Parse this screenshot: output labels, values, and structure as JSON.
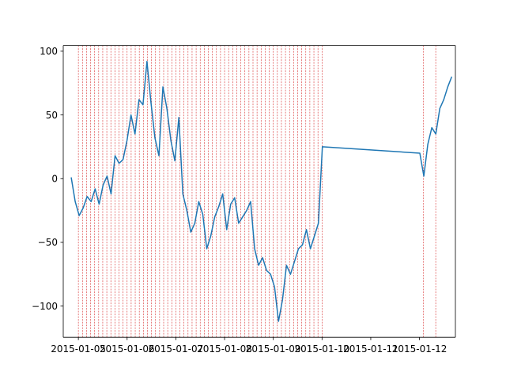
{
  "chart_data": {
    "type": "line",
    "title": "",
    "xlabel": "",
    "ylabel": "",
    "grid": false,
    "legend": false,
    "xlim": [
      "2015-01-04T16:33",
      "2015-01-12T17:41"
    ],
    "ylim": [
      -124.5,
      104.5
    ],
    "xticks": [
      "2015-01-05",
      "2015-01-06",
      "2015-01-07",
      "2015-01-08",
      "2015-01-09",
      "2015-01-10",
      "2015-01-11",
      "2015-01-12"
    ],
    "yticks": [
      100,
      50,
      0,
      -50,
      -100
    ],
    "series": [
      {
        "color": "#1f77b4",
        "x": [
          "2015-01-04T20:28",
          "2015-01-04T22:26",
          "2015-01-05T00:24",
          "2015-01-05T02:21",
          "2015-01-05T04:19",
          "2015-01-05T06:17",
          "2015-01-05T08:15",
          "2015-01-05T10:13",
          "2015-01-05T12:11",
          "2015-01-05T14:08",
          "2015-01-05T16:06",
          "2015-01-05T18:04",
          "2015-01-05T20:02",
          "2015-01-05T22:00",
          "2015-01-05T23:57",
          "2015-01-06T01:55",
          "2015-01-06T03:53",
          "2015-01-06T05:51",
          "2015-01-06T07:49",
          "2015-01-06T09:47",
          "2015-01-06T11:44",
          "2015-01-06T13:42",
          "2015-01-06T15:40",
          "2015-01-06T17:38",
          "2015-01-06T19:36",
          "2015-01-06T21:33",
          "2015-01-06T23:31",
          "2015-01-07T01:29",
          "2015-01-07T03:27",
          "2015-01-07T05:25",
          "2015-01-07T07:22",
          "2015-01-07T09:20",
          "2015-01-07T11:18",
          "2015-01-07T13:16",
          "2015-01-07T15:14",
          "2015-01-07T17:12",
          "2015-01-07T19:09",
          "2015-01-07T21:07",
          "2015-01-07T23:05",
          "2015-01-08T01:03",
          "2015-01-08T03:01",
          "2015-01-08T04:58",
          "2015-01-08T06:56",
          "2015-01-08T08:54",
          "2015-01-08T10:52",
          "2015-01-08T12:50",
          "2015-01-08T14:48",
          "2015-01-08T16:45",
          "2015-01-08T18:43",
          "2015-01-08T20:41",
          "2015-01-08T22:39",
          "2015-01-09T00:37",
          "2015-01-09T02:34",
          "2015-01-09T04:32",
          "2015-01-09T06:30",
          "2015-01-09T08:28",
          "2015-01-09T10:26",
          "2015-01-09T12:24",
          "2015-01-09T14:21",
          "2015-01-09T16:19",
          "2015-01-09T18:17",
          "2015-01-09T20:15",
          "2015-01-09T22:13",
          "2015-01-10T00:10",
          "2015-01-12T00:10",
          "2015-01-12T02:08",
          "2015-01-12T04:06",
          "2015-01-12T06:04",
          "2015-01-12T08:02",
          "2015-01-12T10:00",
          "2015-01-12T11:57",
          "2015-01-12T13:55",
          "2015-01-12T15:53"
        ],
        "y": [
          1,
          -18,
          -29,
          -23,
          -14,
          -18,
          -8,
          -20,
          -5,
          2,
          -12,
          18,
          12,
          15,
          30,
          50,
          35,
          62,
          58,
          92,
          60,
          32,
          18,
          72,
          55,
          30,
          14,
          48,
          -12,
          -25,
          -42,
          -35,
          -18,
          -28,
          -55,
          -45,
          -30,
          -22,
          -12,
          -40,
          -20,
          -15,
          -35,
          -30,
          -25,
          -18,
          -55,
          -68,
          -62,
          -72,
          -75,
          -85,
          -112,
          -95,
          -68,
          -75,
          -65,
          -55,
          -52,
          -40,
          -55,
          -45,
          -35,
          25,
          20,
          2,
          27,
          40,
          35,
          55,
          62,
          72,
          80
        ]
      }
    ],
    "vlines": {
      "color": "#d62728",
      "style": "dashed",
      "x": [
        "2015-01-05T00:00",
        "2015-01-05T02:00",
        "2015-01-05T04:00",
        "2015-01-05T06:00",
        "2015-01-05T08:00",
        "2015-01-05T10:00",
        "2015-01-05T12:00",
        "2015-01-05T14:00",
        "2015-01-05T16:00",
        "2015-01-05T18:00",
        "2015-01-05T20:00",
        "2015-01-05T22:00",
        "2015-01-06T00:00",
        "2015-01-06T02:00",
        "2015-01-06T04:00",
        "2015-01-06T06:00",
        "2015-01-06T08:00",
        "2015-01-06T10:00",
        "2015-01-06T12:00",
        "2015-01-06T14:00",
        "2015-01-06T16:00",
        "2015-01-06T18:00",
        "2015-01-06T20:00",
        "2015-01-06T22:00",
        "2015-01-07T00:00",
        "2015-01-07T02:00",
        "2015-01-07T04:00",
        "2015-01-07T06:00",
        "2015-01-07T08:00",
        "2015-01-07T10:00",
        "2015-01-07T12:00",
        "2015-01-07T14:00",
        "2015-01-07T16:00",
        "2015-01-07T18:00",
        "2015-01-07T20:00",
        "2015-01-07T22:00",
        "2015-01-08T00:00",
        "2015-01-08T02:00",
        "2015-01-08T04:00",
        "2015-01-08T06:00",
        "2015-01-08T08:00",
        "2015-01-08T10:00",
        "2015-01-08T12:00",
        "2015-01-08T14:00",
        "2015-01-08T16:00",
        "2015-01-08T18:00",
        "2015-01-08T20:00",
        "2015-01-08T22:00",
        "2015-01-09T00:00",
        "2015-01-09T02:00",
        "2015-01-09T04:00",
        "2015-01-09T06:00",
        "2015-01-09T08:00",
        "2015-01-09T10:00",
        "2015-01-09T12:00",
        "2015-01-09T14:00",
        "2015-01-09T16:00",
        "2015-01-09T18:00",
        "2015-01-09T20:00",
        "2015-01-09T22:00",
        "2015-01-10T00:00",
        "2015-01-12T02:00",
        "2015-01-12T08:00"
      ]
    }
  }
}
